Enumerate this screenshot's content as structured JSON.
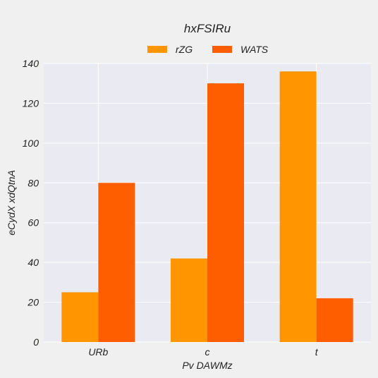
{
  "chart_data": {
    "type": "bar",
    "title": "hxFSIRu",
    "xlabel": "Pv DAWMz",
    "ylabel": "eCydX xdQtnA",
    "categories": [
      "URb",
      "c",
      "t"
    ],
    "series": [
      {
        "name": "rZG",
        "values": [
          25,
          42,
          136
        ],
        "color": "#ff9500"
      },
      {
        "name": "WATS",
        "values": [
          80,
          130,
          22
        ],
        "color": "#ff5e00"
      }
    ],
    "ylim": [
      0,
      140
    ],
    "yticks": [
      "0",
      "20",
      "40",
      "60",
      "80",
      "100",
      "120",
      "140"
    ],
    "grid": true,
    "legend_position": "top-center",
    "plot_background": "#eaeaf2"
  }
}
